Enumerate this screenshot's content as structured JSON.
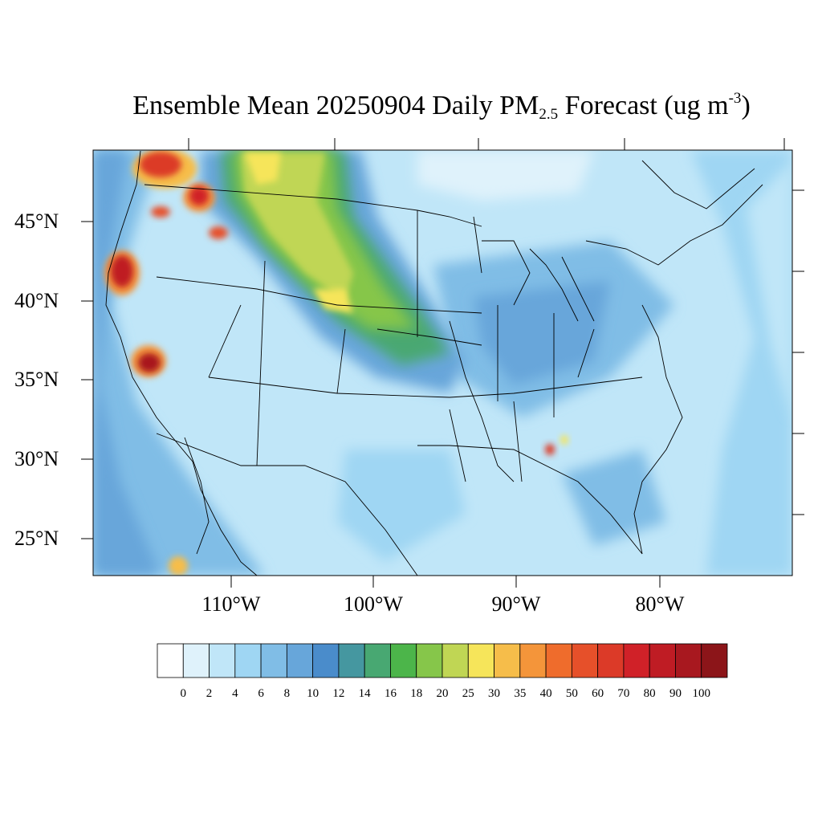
{
  "title": {
    "prefix": "Ensemble Mean 20250904 Daily PM",
    "subscript": "2.5",
    "middle": " Forecast (ug m",
    "superscript": "-3",
    "suffix": ")"
  },
  "lat_labels": [
    "45°N",
    "40°N",
    "35°N",
    "30°N",
    "25°N"
  ],
  "lon_labels": [
    "110°W",
    "100°W",
    "90°W",
    "80°W"
  ],
  "colorbar": {
    "labels": [
      "0",
      "2",
      "4",
      "6",
      "8",
      "10",
      "12",
      "14",
      "16",
      "18",
      "20",
      "25",
      "30",
      "35",
      "40",
      "50",
      "60",
      "70",
      "80",
      "90",
      "100"
    ],
    "colors": [
      "#ffffff",
      "#dff2fb",
      "#c0e6f8",
      "#9fd6f3",
      "#80bde6",
      "#67a6da",
      "#4a8ccb",
      "#4597a0",
      "#48a872",
      "#4cb54a",
      "#86c64a",
      "#c0d654",
      "#f6e55a",
      "#f6bd4a",
      "#f4953a",
      "#ef6c2c",
      "#e6502a",
      "#dc3a28",
      "#d02128",
      "#bf1c24",
      "#a8181f",
      "#8c1519"
    ]
  },
  "map": {
    "lat_range": [
      22.5,
      49.5
    ],
    "lon_range": [
      -120,
      -72
    ],
    "field": "Daily PM2.5 concentration"
  }
}
